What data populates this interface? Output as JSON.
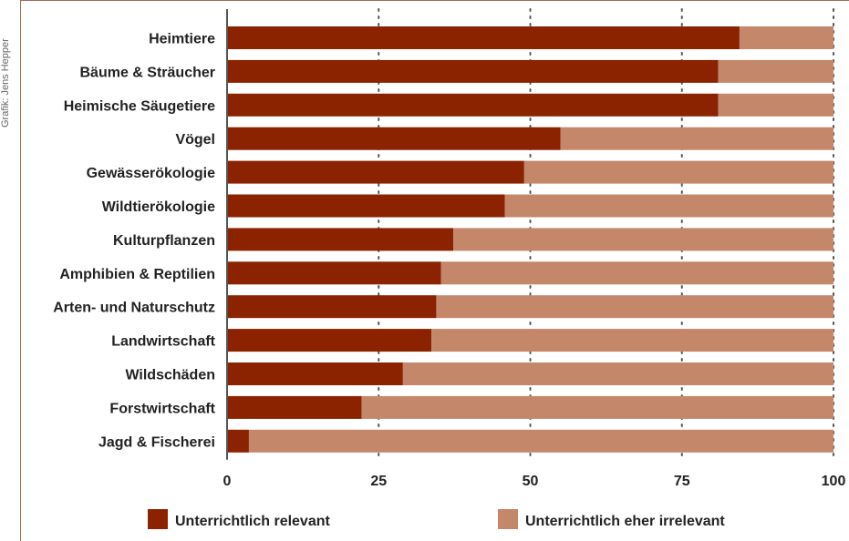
{
  "credit": "Grafik: Jens Hepper",
  "chart_data": {
    "type": "bar",
    "orientation": "horizontal",
    "stacked": true,
    "categories": [
      "Heimtiere",
      "Bäume & Sträucher",
      "Heimische Säugetiere",
      "Vögel",
      "Gewässerökologie",
      "Wildtierökologie",
      "Kulturpflanzen",
      "Amphibien & Reptilien",
      "Arten- und Naturschutz",
      "Landwirtschaft",
      "Wildschäden",
      "Forstwirtschaft",
      "Jagd & Fischerei"
    ],
    "series": [
      {
        "name": "Unterrichtlich relevant",
        "color": "#8b2200",
        "values": [
          84.5,
          81,
          81,
          55,
          49,
          45.8,
          37.3,
          35.3,
          34.5,
          33.7,
          29,
          22.2,
          3.6
        ]
      },
      {
        "name": "Unterrichtlich eher irrelevant",
        "color": "#c4876a",
        "values": [
          15.5,
          19,
          19,
          45,
          51,
          54.2,
          62.7,
          64.7,
          65.5,
          66.3,
          71,
          77.8,
          96.4
        ]
      }
    ],
    "xlim": [
      0,
      100
    ],
    "xticks": [
      "0",
      "25",
      "50",
      "75",
      "100"
    ],
    "title": "",
    "xlabel": "",
    "ylabel": "",
    "grid": "dotted vertical",
    "legend_position": "bottom"
  }
}
